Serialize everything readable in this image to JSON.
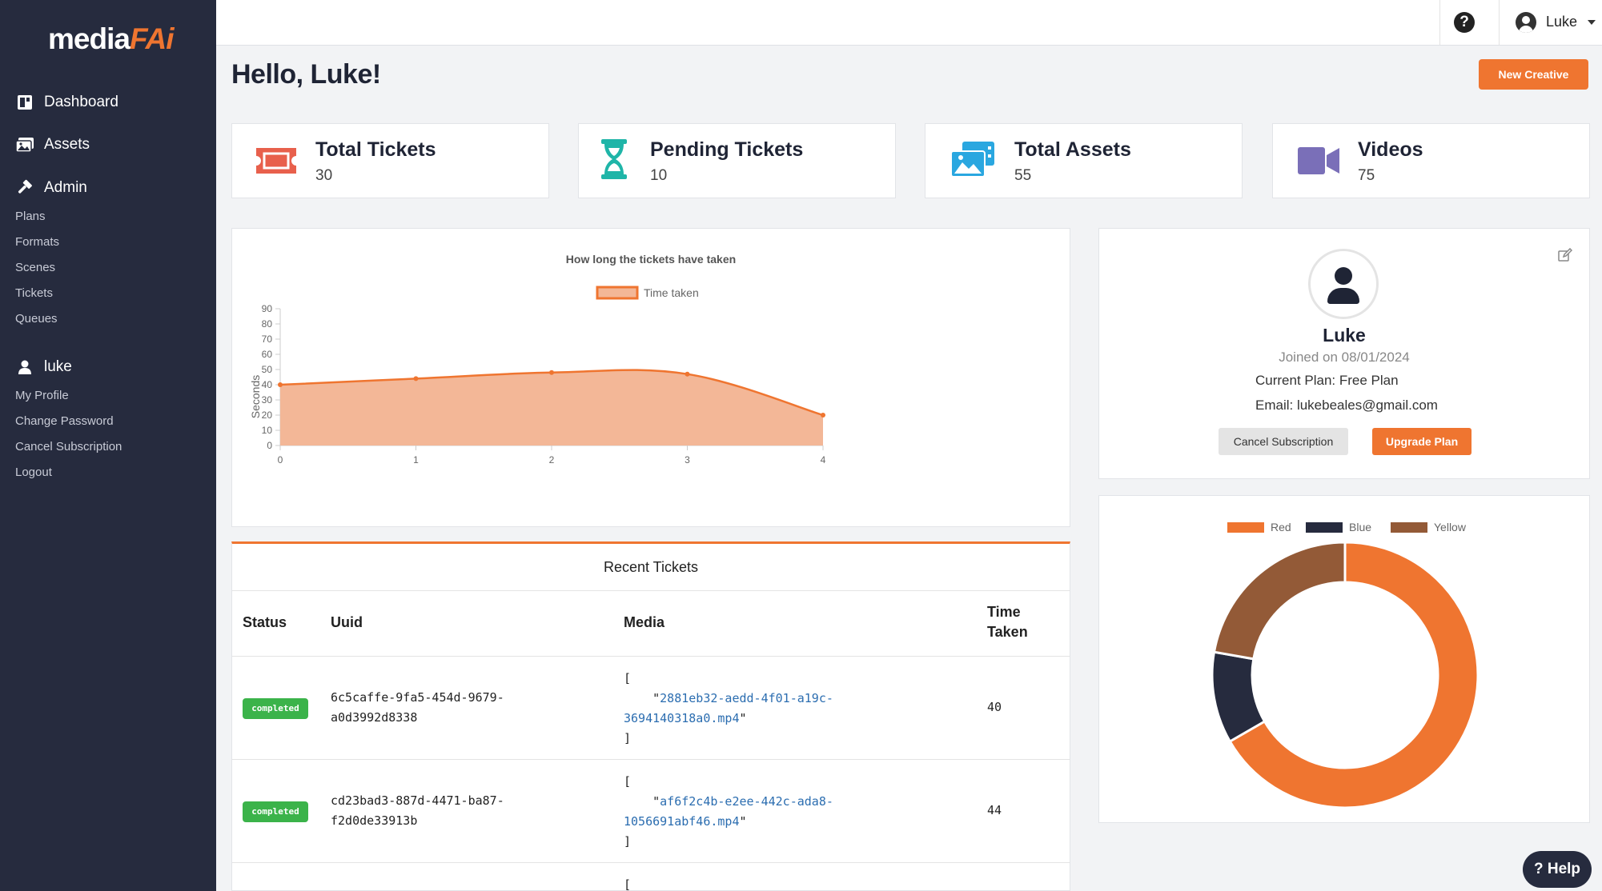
{
  "brand": {
    "part1": "media",
    "part2": "FAi"
  },
  "sidebar": {
    "main": [
      {
        "label": "Dashboard",
        "icon": "dashboard-icon"
      },
      {
        "label": "Assets",
        "icon": "images-icon"
      },
      {
        "label": "Admin",
        "icon": "hammer-icon"
      }
    ],
    "admin_items": [
      "Plans",
      "Formats",
      "Scenes",
      "Tickets",
      "Queues"
    ],
    "user": {
      "label": "luke",
      "icon": "user-icon"
    },
    "user_items": [
      "My Profile",
      "Change Password",
      "Cancel Subscription",
      "Logout"
    ]
  },
  "topbar": {
    "help_icon": "question-circle-icon",
    "username": "Luke"
  },
  "greeting": "Hello, Luke!",
  "new_creative_label": "New Creative",
  "stats": [
    {
      "title": "Total Tickets",
      "value": "30",
      "icon": "ticket-icon",
      "color": "#e8604c"
    },
    {
      "title": "Pending Tickets",
      "value": "10",
      "icon": "hourglass-icon",
      "color": "#1fb5a8"
    },
    {
      "title": "Total Assets",
      "value": "55",
      "icon": "photo-film-icon",
      "color": "#2aa7e0"
    },
    {
      "title": "Videos",
      "value": "75",
      "icon": "video-icon",
      "color": "#7a6fb8"
    }
  ],
  "chart_data": [
    {
      "type": "area",
      "title": "How long the tickets have taken",
      "xlabel": "",
      "ylabel": "Seconds",
      "x": [
        0,
        1,
        2,
        3,
        4
      ],
      "series": [
        {
          "name": "Time taken",
          "values": [
            40,
            44,
            48,
            47,
            20
          ]
        }
      ],
      "ylim": [
        0,
        90
      ],
      "yticks": [
        0,
        10,
        20,
        30,
        40,
        50,
        60,
        70,
        80,
        90
      ],
      "colors": {
        "line": "#ef7530",
        "fill": "#f3b797"
      },
      "legend": "top"
    },
    {
      "type": "pie",
      "categories": [
        "Red",
        "Blue",
        "Yellow"
      ],
      "values": [
        300,
        50,
        100
      ],
      "colors": [
        "#ef7530",
        "#262b3e",
        "#935a37"
      ],
      "legend": "top"
    }
  ],
  "tickets": {
    "title": "Recent Tickets",
    "headers": {
      "status": "Status",
      "uuid": "Uuid",
      "media": "Media",
      "time1": "Time",
      "time2": "Taken"
    },
    "rows": [
      {
        "status": "completed",
        "uuid1": "6c5caffe-9fa5-454d-9679-",
        "uuid2": "a0d3992d8338",
        "open": "[",
        "media_pre": "    \"",
        "media1": "2881eb32-aedd-4f01-a19c-",
        "media2": "3694140318a0.mp4",
        "media_post": "\"",
        "close": "]",
        "time": "40"
      },
      {
        "status": "completed",
        "uuid1": "cd23bad3-887d-4471-ba87-",
        "uuid2": "f2d0de33913b",
        "open": "[",
        "media_pre": "    \"",
        "media1": "af6f2c4b-e2ee-442c-ada8-",
        "media2": "1056691abf46.mp4",
        "media_post": "\"",
        "close": "]",
        "time": "44"
      },
      {
        "open": "["
      }
    ]
  },
  "profile": {
    "name": "Luke",
    "joined": "Joined on 08/01/2024",
    "plan": "Current Plan: Free Plan",
    "email": "Email: lukebeales@gmail.com",
    "cancel_label": "Cancel Subscription",
    "upgrade_label": "Upgrade Plan",
    "edit_icon": "edit-icon"
  },
  "help_label": "? Help"
}
